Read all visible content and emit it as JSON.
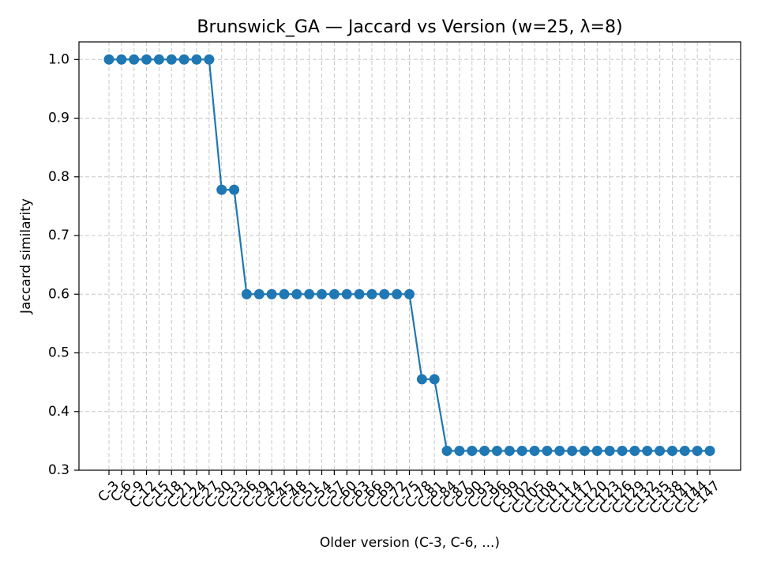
{
  "chart_data": {
    "type": "line",
    "title": "Brunswick_GA — Jaccard vs Version (w=25, λ=8)",
    "xlabel": "Older version (C-3, C-6, ...)",
    "ylabel": "Jaccard similarity",
    "ylim": [
      0.3,
      1.03
    ],
    "yticks": [
      0.3,
      0.4,
      0.5,
      0.6,
      0.7,
      0.8,
      0.9,
      1.0
    ],
    "ytick_labels": [
      "0.3",
      "0.4",
      "0.5",
      "0.6",
      "0.7",
      "0.8",
      "0.9",
      "1.0"
    ],
    "grid": true,
    "color": "#1f77b4",
    "categories": [
      "C-3",
      "C-6",
      "C-9",
      "C-12",
      "C-15",
      "C-18",
      "C-21",
      "C-24",
      "C-27",
      "C-30",
      "C-33",
      "C-36",
      "C-39",
      "C-42",
      "C-45",
      "C-48",
      "C-51",
      "C-54",
      "C-57",
      "C-60",
      "C-63",
      "C-66",
      "C-69",
      "C-72",
      "C-75",
      "C-78",
      "C-81",
      "C-84",
      "C-87",
      "C-90",
      "C-93",
      "C-96",
      "C-99",
      "C-102",
      "C-105",
      "C-108",
      "C-111",
      "C-114",
      "C-117",
      "C-120",
      "C-123",
      "C-126",
      "C-129",
      "C-132",
      "C-135",
      "C-138",
      "C-141",
      "C-144",
      "C-147"
    ],
    "series": [
      {
        "values": [
          1.0,
          1.0,
          1.0,
          1.0,
          1.0,
          1.0,
          1.0,
          1.0,
          1.0,
          0.778,
          0.778,
          0.6,
          0.6,
          0.6,
          0.6,
          0.6,
          0.6,
          0.6,
          0.6,
          0.6,
          0.6,
          0.6,
          0.6,
          0.6,
          0.6,
          0.455,
          0.455,
          0.333,
          0.333,
          0.333,
          0.333,
          0.333,
          0.333,
          0.333,
          0.333,
          0.333,
          0.333,
          0.333,
          0.333,
          0.333,
          0.333,
          0.333,
          0.333,
          0.333,
          0.333,
          0.333,
          0.333,
          0.333,
          0.333
        ]
      }
    ]
  }
}
